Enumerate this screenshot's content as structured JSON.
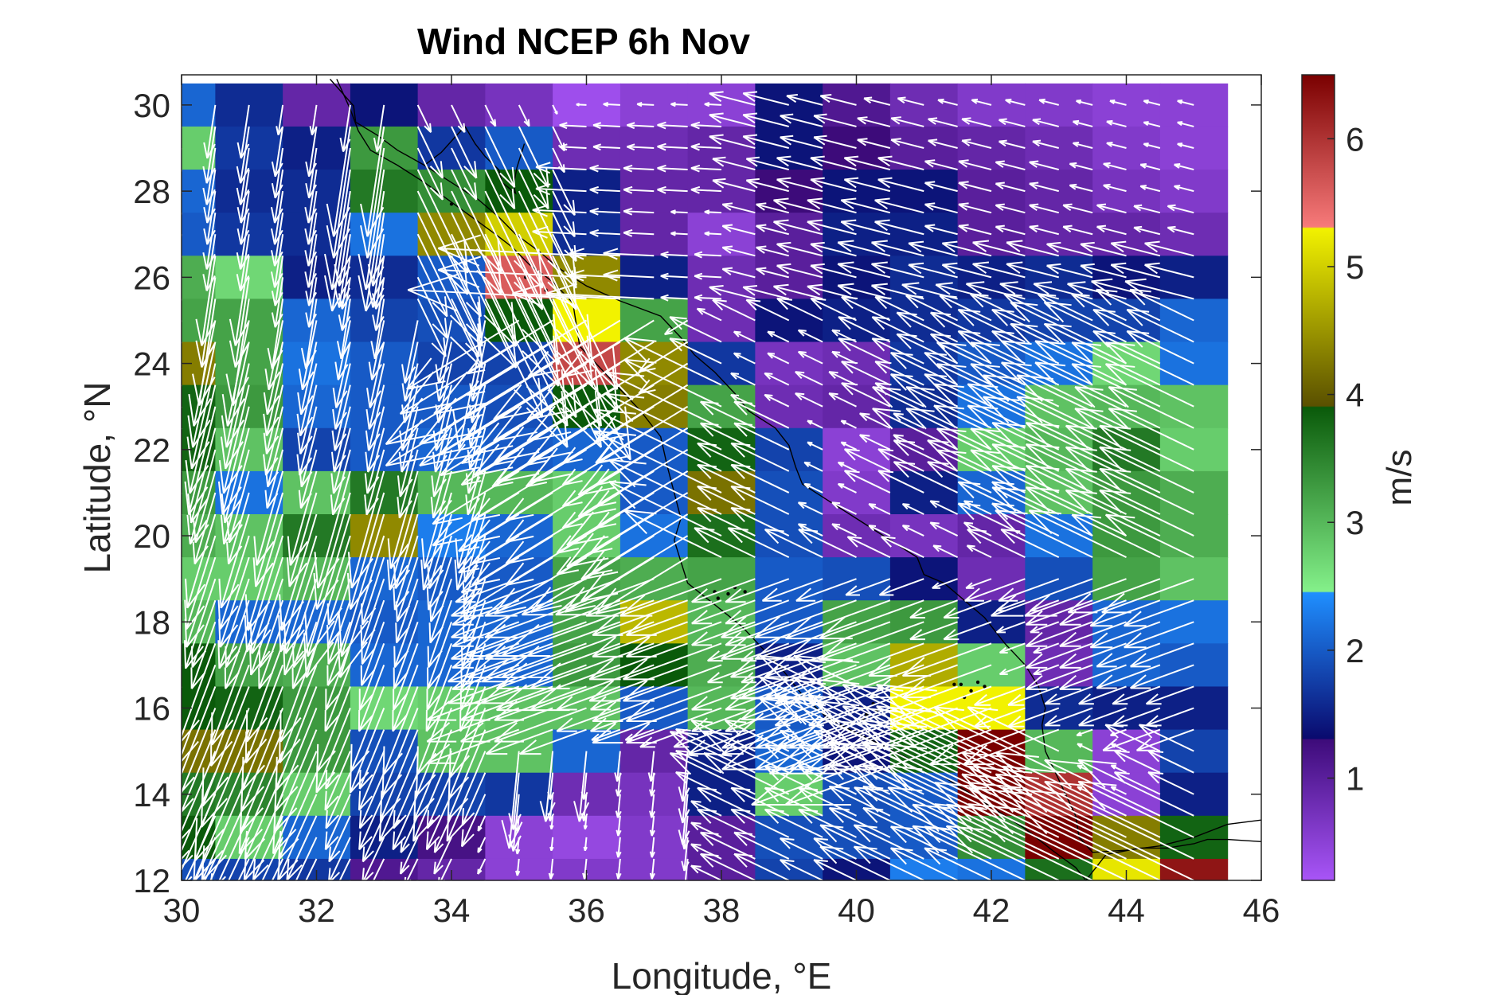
{
  "chart_data": {
    "type": "heatmap",
    "title": "Wind NCEP 6h Nov",
    "xlabel": "Longitude, °E",
    "ylabel": "Latitude, °N",
    "xlim": [
      30,
      46
    ],
    "ylim": [
      12,
      30.7
    ],
    "x_ticks": [
      30,
      32,
      34,
      36,
      38,
      40,
      42,
      44,
      46
    ],
    "y_ticks": [
      12,
      14,
      16,
      18,
      20,
      22,
      24,
      26,
      28,
      30
    ],
    "grid": false,
    "legend": "none",
    "colorbar": {
      "label": "m/s",
      "range": [
        0.2,
        6.5
      ],
      "ticks": [
        1,
        2,
        3,
        4,
        5,
        6
      ],
      "placement": "right",
      "stops": [
        {
          "v": 0.2,
          "color": "#a855f7"
        },
        {
          "v": 1.3,
          "color": "#3d0b7a"
        },
        {
          "v": 1.31,
          "color": "#0a0a6e"
        },
        {
          "v": 2.45,
          "color": "#1f8fff"
        },
        {
          "v": 2.46,
          "color": "#84f08a"
        },
        {
          "v": 3.9,
          "color": "#0a5a0a"
        },
        {
          "v": 3.91,
          "color": "#5a5000"
        },
        {
          "v": 5.3,
          "color": "#f2f200"
        },
        {
          "v": 5.31,
          "color": "#f77a7a"
        },
        {
          "v": 6.5,
          "color": "#7a0000"
        }
      ]
    },
    "grid_lon_start": 30.0,
    "grid_lon_step": 0.5,
    "grid_lon_count": 31,
    "grid_lat_start": 12.0,
    "grid_lat_step": 0.5,
    "grid_lat_count": 37,
    "speed_lon": [
      30,
      31,
      32,
      33,
      34,
      35,
      36,
      37,
      38,
      39,
      40,
      41,
      42,
      43,
      44,
      45
    ],
    "speed_lat": [
      30,
      29,
      28,
      27,
      26,
      25,
      24,
      23,
      22,
      21,
      20,
      19,
      18,
      17,
      16,
      15,
      14,
      13,
      12
    ],
    "speed": [
      [
        2.1,
        1.6,
        0.9,
        1.4,
        0.9,
        0.7,
        0.3,
        0.5,
        0.5,
        1.4,
        1.1,
        0.8,
        0.6,
        0.6,
        0.5,
        0.5
      ],
      [
        2.8,
        1.7,
        1.5,
        3.3,
        1.7,
        2.0,
        0.8,
        0.8,
        0.9,
        1.4,
        1.3,
        1.0,
        0.9,
        0.8,
        0.6,
        0.5
      ],
      [
        2.1,
        1.6,
        1.6,
        3.6,
        3.4,
        3.9,
        1.5,
        0.9,
        0.9,
        1.3,
        1.4,
        1.4,
        1.0,
        0.9,
        0.7,
        0.6
      ],
      [
        2.0,
        1.7,
        1.6,
        2.2,
        4.4,
        5.0,
        1.6,
        0.9,
        0.5,
        1.0,
        1.5,
        1.5,
        1.0,
        0.9,
        0.9,
        0.8
      ],
      [
        3.1,
        2.7,
        1.5,
        1.6,
        2.0,
        5.6,
        4.4,
        1.5,
        0.8,
        1.0,
        1.4,
        1.6,
        1.5,
        1.6,
        1.4,
        1.5
      ],
      [
        3.2,
        3.2,
        2.1,
        1.8,
        1.9,
        3.9,
        5.3,
        3.2,
        0.8,
        1.4,
        1.5,
        1.6,
        1.7,
        1.8,
        1.8,
        2.1
      ],
      [
        4.3,
        3.2,
        2.2,
        2.0,
        1.8,
        1.8,
        5.8,
        4.4,
        1.7,
        0.7,
        0.8,
        1.7,
        2.0,
        2.2,
        2.7,
        2.2
      ],
      [
        3.8,
        3.3,
        2.1,
        2.0,
        2.0,
        1.9,
        3.9,
        4.3,
        3.2,
        0.8,
        0.9,
        1.6,
        2.2,
        2.9,
        3.0,
        2.9
      ],
      [
        3.8,
        2.9,
        1.8,
        2.0,
        2.1,
        2.0,
        2.1,
        2.0,
        3.8,
        1.8,
        0.5,
        1.0,
        2.8,
        3.0,
        3.6,
        2.8
      ],
      [
        3.3,
        2.2,
        2.9,
        3.6,
        3.0,
        3.0,
        2.8,
        2.0,
        4.2,
        1.9,
        0.6,
        1.5,
        2.1,
        2.9,
        3.3,
        3.1
      ],
      [
        3.1,
        2.9,
        3.6,
        4.4,
        2.3,
        2.1,
        2.8,
        2.2,
        3.7,
        1.9,
        0.8,
        0.7,
        0.9,
        2.2,
        3.3,
        3.1
      ],
      [
        2.8,
        2.8,
        3.0,
        2.1,
        2.0,
        2.0,
        3.2,
        3.1,
        3.2,
        2.0,
        1.9,
        1.4,
        0.8,
        1.9,
        3.2,
        2.9
      ],
      [
        3.0,
        2.1,
        2.1,
        2.0,
        2.1,
        2.1,
        3.2,
        4.8,
        3.0,
        2.0,
        3.2,
        3.3,
        1.5,
        0.9,
        2.1,
        2.2
      ],
      [
        3.9,
        3.2,
        3.1,
        2.1,
        2.1,
        2.1,
        3.3,
        3.9,
        3.1,
        1.5,
        2.9,
        4.7,
        2.8,
        0.8,
        2.1,
        2.0
      ],
      [
        3.9,
        3.8,
        3.3,
        2.7,
        2.8,
        2.9,
        2.9,
        2.0,
        3.0,
        2.0,
        1.5,
        5.3,
        5.3,
        1.6,
        1.5,
        1.5
      ],
      [
        4.2,
        4.2,
        3.3,
        1.9,
        2.9,
        2.9,
        2.1,
        0.9,
        1.5,
        2.1,
        1.4,
        3.8,
        6.5,
        3.0,
        0.5,
        1.8
      ],
      [
        3.6,
        3.5,
        2.8,
        1.8,
        1.8,
        1.7,
        0.8,
        0.7,
        1.5,
        2.8,
        1.9,
        2.0,
        6.5,
        6.0,
        0.5,
        1.5
      ],
      [
        3.9,
        2.8,
        2.1,
        1.5,
        1.2,
        0.5,
        0.4,
        0.6,
        1.0,
        1.9,
        1.9,
        2.0,
        3.4,
        6.5,
        4.3,
        3.8
      ],
      [
        1.9,
        1.8,
        1.7,
        1.1,
        0.9,
        0.5,
        0.6,
        0.6,
        1.0,
        1.8,
        1.4,
        2.3,
        2.2,
        3.7,
        5.2,
        6.3
      ]
    ],
    "arrow_scale_deg_per_ms": 0.5,
    "coastline": [
      [
        [
          32.2,
          30.6
        ],
        [
          32.55,
          29.98
        ],
        [
          32.58,
          29.6
        ],
        [
          32.9,
          29.3
        ],
        [
          33.2,
          28.95
        ],
        [
          33.6,
          28.6
        ],
        [
          34.0,
          28.2
        ],
        [
          34.4,
          27.8
        ],
        [
          34.7,
          27.4
        ],
        [
          34.95,
          27.0
        ],
        [
          35.3,
          26.6
        ],
        [
          35.6,
          26.2
        ],
        [
          36.0,
          25.8
        ],
        [
          36.5,
          25.45
        ],
        [
          37.1,
          25.1
        ],
        [
          37.4,
          24.6
        ],
        [
          37.6,
          24.2
        ],
        [
          37.9,
          23.8
        ],
        [
          38.2,
          23.3
        ],
        [
          38.4,
          22.9
        ],
        [
          38.8,
          22.5
        ],
        [
          39.0,
          22.1
        ],
        [
          39.1,
          21.6
        ],
        [
          39.2,
          21.2
        ],
        [
          39.6,
          20.8
        ],
        [
          40.0,
          20.4
        ],
        [
          40.3,
          20.1
        ],
        [
          40.6,
          19.8
        ],
        [
          40.9,
          19.5
        ],
        [
          41.0,
          19.1
        ],
        [
          41.3,
          18.9
        ],
        [
          41.6,
          18.5
        ],
        [
          41.9,
          18.1
        ],
        [
          42.2,
          17.5
        ],
        [
          42.5,
          17.0
        ],
        [
          42.7,
          16.5
        ],
        [
          42.8,
          16.0
        ],
        [
          42.75,
          15.6
        ],
        [
          42.8,
          15.0
        ],
        [
          42.95,
          14.5
        ],
        [
          43.1,
          14.0
        ],
        [
          43.25,
          13.5
        ],
        [
          43.3,
          13.0
        ],
        [
          43.5,
          12.65
        ],
        [
          44.0,
          12.7
        ],
        [
          44.5,
          12.8
        ],
        [
          45.0,
          13.0
        ],
        [
          45.5,
          13.3
        ],
        [
          46.0,
          13.4
        ]
      ],
      [
        [
          46.0,
          12.9
        ],
        [
          45.5,
          12.95
        ],
        [
          45.2,
          12.95
        ],
        [
          45.0,
          12.85
        ],
        [
          44.6,
          12.75
        ],
        [
          44.2,
          12.75
        ],
        [
          43.7,
          12.6
        ],
        [
          43.55,
          12.3
        ],
        [
          43.4,
          12.0
        ]
      ],
      [
        [
          32.3,
          30.6
        ],
        [
          32.5,
          29.9
        ],
        [
          32.62,
          29.4
        ],
        [
          32.8,
          28.95
        ],
        [
          33.2,
          28.6
        ],
        [
          33.6,
          28.2
        ],
        [
          33.95,
          27.8
        ],
        [
          34.3,
          27.4
        ],
        [
          34.65,
          27.0
        ],
        [
          34.9,
          26.7
        ],
        [
          35.15,
          26.3
        ],
        [
          35.5,
          25.9
        ],
        [
          35.8,
          25.4
        ],
        [
          35.85,
          24.9
        ],
        [
          35.9,
          24.4
        ],
        [
          36.2,
          23.9
        ],
        [
          36.5,
          23.4
        ],
        [
          36.8,
          22.9
        ],
        [
          37.1,
          22.3
        ],
        [
          37.2,
          21.6
        ],
        [
          37.3,
          21.0
        ],
        [
          37.4,
          20.4
        ],
        [
          37.3,
          19.9
        ],
        [
          37.4,
          19.4
        ],
        [
          37.5,
          18.9
        ],
        [
          37.9,
          18.4
        ],
        [
          38.3,
          17.9
        ],
        [
          38.6,
          17.4
        ],
        [
          38.9,
          16.9
        ],
        [
          39.2,
          16.3
        ],
        [
          39.55,
          15.8
        ],
        [
          39.9,
          15.5
        ],
        [
          40.3,
          15.2
        ],
        [
          40.8,
          14.8
        ],
        [
          41.3,
          14.4
        ],
        [
          41.7,
          14.0
        ],
        [
          42.1,
          13.6
        ],
        [
          42.5,
          13.2
        ],
        [
          42.9,
          12.7
        ],
        [
          43.25,
          12.3
        ],
        [
          43.4,
          12.0
        ]
      ],
      [
        [
          34.2,
          29.5
        ],
        [
          34.35,
          29.1
        ],
        [
          34.5,
          28.8
        ],
        [
          34.7,
          28.5
        ],
        [
          34.75,
          28.2
        ],
        [
          34.95,
          27.95
        ],
        [
          34.92,
          28.15
        ],
        [
          34.97,
          28.55
        ],
        [
          35.05,
          28.95
        ],
        [
          35.08,
          29.1
        ]
      ],
      [
        [
          34.2,
          29.5
        ],
        [
          34.05,
          29.25
        ],
        [
          33.85,
          28.9
        ],
        [
          33.6,
          28.6
        ]
      ]
    ],
    "islands": [
      [
        41.45,
        16.55
      ],
      [
        41.55,
        16.55
      ],
      [
        41.7,
        16.4
      ],
      [
        41.6,
        16.25
      ],
      [
        41.8,
        16.6
      ],
      [
        41.9,
        16.5
      ],
      [
        40.05,
        16.0
      ],
      [
        40.15,
        15.85
      ],
      [
        40.25,
        16.1
      ],
      [
        40.1,
        15.75
      ],
      [
        40.3,
        15.95
      ],
      [
        37.95,
        18.55
      ],
      [
        38.1,
        18.65
      ],
      [
        38.2,
        18.8
      ],
      [
        38.35,
        18.7
      ],
      [
        37.9,
        18.7
      ],
      [
        35.1,
        26.0
      ],
      [
        35.4,
        25.7
      ],
      [
        34.0,
        27.7
      ]
    ]
  }
}
